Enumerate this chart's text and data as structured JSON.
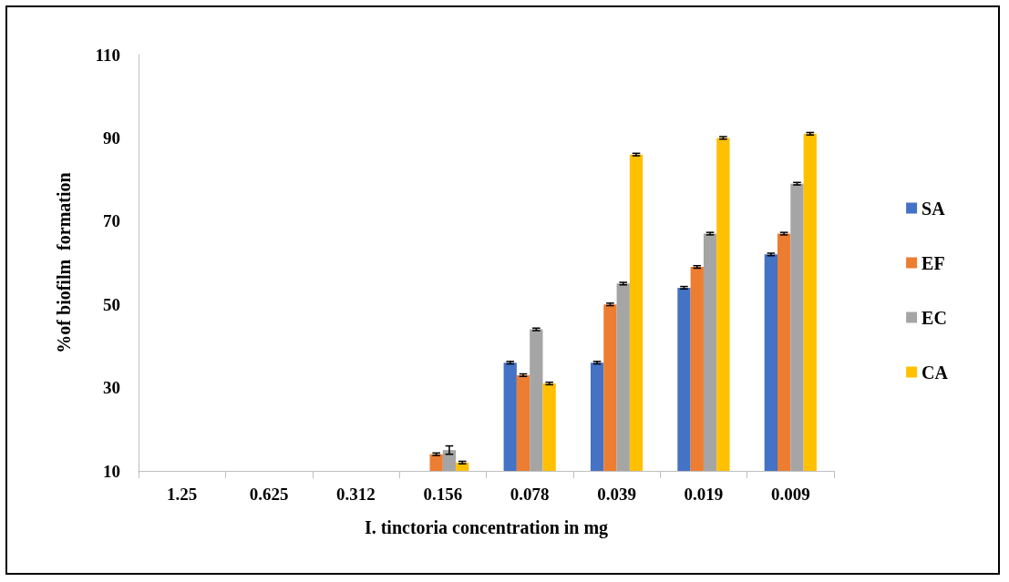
{
  "chart_data": {
    "type": "bar",
    "xlabel": "I. tinctoria concentration in mg",
    "ylabel": "%of biofilm  formation",
    "categories": [
      "1.25",
      "0.625",
      "0.312",
      "0.156",
      "0.078",
      "0.039",
      "0.019",
      "0.009"
    ],
    "series": [
      {
        "name": "SA",
        "color": "#4472c4",
        "values": [
          10,
          10,
          10,
          10,
          36,
          36,
          54,
          62
        ],
        "errors": [
          null,
          null,
          null,
          null,
          0.3,
          0.3,
          0.3,
          0.3
        ]
      },
      {
        "name": "EF",
        "color": "#ed7d31",
        "values": [
          10,
          10,
          10,
          14,
          33,
          50,
          59,
          67
        ],
        "errors": [
          null,
          null,
          null,
          0.3,
          0.3,
          0.3,
          0.3,
          0.3
        ]
      },
      {
        "name": "EC",
        "color": "#a5a5a5",
        "values": [
          10,
          10,
          10,
          15,
          44,
          55,
          67,
          79
        ],
        "errors": [
          null,
          null,
          null,
          1,
          0.3,
          0.3,
          0.3,
          0.3
        ]
      },
      {
        "name": "CA",
        "color": "#ffc000",
        "values": [
          10,
          10,
          10,
          12,
          31,
          86,
          90,
          91
        ],
        "errors": [
          null,
          null,
          null,
          0.3,
          0.3,
          0.3,
          0.3,
          0.3
        ]
      }
    ],
    "ylim": [
      10,
      110
    ],
    "yticks": [
      10,
      30,
      50,
      70,
      90,
      110
    ],
    "grid": false,
    "legend": "right"
  }
}
